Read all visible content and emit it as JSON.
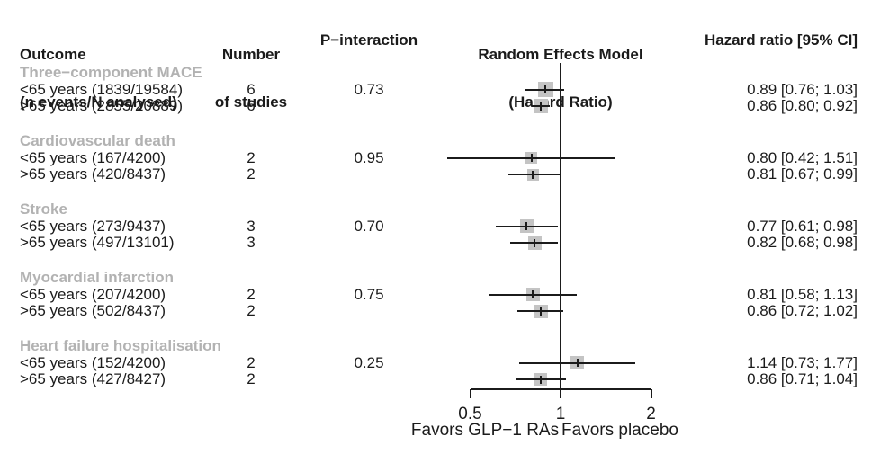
{
  "header": {
    "outcome_line1": "Outcome",
    "outcome_line2": "(n events/N analysed)",
    "studies_line1": "Number",
    "studies_line2": "of studies",
    "p_interaction": "P−interaction",
    "model_line1": "Random Effects Model",
    "model_line2": "(Hazard Ratio)",
    "hazard_ratio": "Hazard ratio [95% CI]"
  },
  "colors": {
    "text": "#1b1b1b",
    "group_label": "#b2b2b2",
    "square": "#c4c4c4",
    "line": "#1b1b1b"
  },
  "chart_data": {
    "type": "forest",
    "scale": "log2",
    "title": "Random Effects Model (Hazard Ratio)",
    "axis": {
      "tick_values": [
        0.5,
        1,
        2
      ],
      "tick_labels": [
        "0.5",
        "1",
        "2"
      ],
      "reference_value": 1,
      "xlim": [
        0.5,
        2
      ],
      "left_label": "Favors GLP−1 RAs",
      "right_label": "Favors placebo"
    },
    "groups": [
      {
        "label": "Three−component MACE",
        "rows": [
          {
            "label": "<65 years (1839/19584)",
            "studies": "6",
            "p_interaction": "0.73",
            "hr": 0.89,
            "lo": 0.76,
            "hi": 1.03,
            "ci_text": "0.89 [0.76; 1.03]",
            "size": 17
          },
          {
            "label": ">65 years (2855/20889)",
            "studies": "6",
            "p_interaction": "",
            "hr": 0.86,
            "lo": 0.8,
            "hi": 0.92,
            "ci_text": "0.86 [0.80; 0.92]",
            "size": 16
          }
        ]
      },
      {
        "label": "Cardiovascular death",
        "rows": [
          {
            "label": "<65 years (167/4200)",
            "studies": "2",
            "p_interaction": "0.95",
            "hr": 0.8,
            "lo": 0.42,
            "hi": 1.51,
            "ci_text": "0.80 [0.42; 1.51]",
            "size": 13
          },
          {
            "label": ">65 years (420/8437)",
            "studies": "2",
            "p_interaction": "",
            "hr": 0.81,
            "lo": 0.67,
            "hi": 0.99,
            "ci_text": "0.81 [0.67; 0.99]",
            "size": 13
          }
        ]
      },
      {
        "label": "Stroke",
        "rows": [
          {
            "label": "<65 years (273/9437)",
            "studies": "3",
            "p_interaction": "0.70",
            "hr": 0.77,
            "lo": 0.61,
            "hi": 0.98,
            "ci_text": "0.77 [0.61; 0.98]",
            "size": 15
          },
          {
            "label": ">65 years (497/13101)",
            "studies": "3",
            "p_interaction": "",
            "hr": 0.82,
            "lo": 0.68,
            "hi": 0.98,
            "ci_text": "0.82 [0.68; 0.98]",
            "size": 15
          }
        ]
      },
      {
        "label": "Myocardial infarction",
        "rows": [
          {
            "label": "<65 years (207/4200)",
            "studies": "2",
            "p_interaction": "0.75",
            "hr": 0.81,
            "lo": 0.58,
            "hi": 1.13,
            "ci_text": "0.81 [0.58; 1.13]",
            "size": 15
          },
          {
            "label": ">65 years (502/8437)",
            "studies": "2",
            "p_interaction": "",
            "hr": 0.86,
            "lo": 0.72,
            "hi": 1.02,
            "ci_text": "0.86 [0.72; 1.02]",
            "size": 15
          }
        ]
      },
      {
        "label": "Heart failure hospitalisation",
        "rows": [
          {
            "label": "<65 years (152/4200)",
            "studies": "2",
            "p_interaction": "0.25",
            "hr": 1.14,
            "lo": 0.73,
            "hi": 1.77,
            "ci_text": "1.14 [0.73; 1.77]",
            "size": 15
          },
          {
            "label": ">65 years (427/8427)",
            "studies": "2",
            "p_interaction": "",
            "hr": 0.86,
            "lo": 0.71,
            "hi": 1.04,
            "ci_text": "0.86 [0.71; 1.04]",
            "size": 14
          }
        ]
      }
    ]
  }
}
